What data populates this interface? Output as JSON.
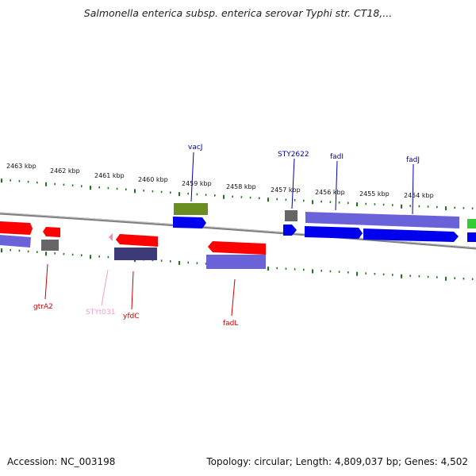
{
  "title": "Salmonella enterica subsp. enterica serovar Typhi str. CT18,...",
  "footer": {
    "accession": "Accession: NC_003198",
    "topology": "Topology: circular; Length: 4,809,037 bp; Genes: 4,502"
  },
  "colors": {
    "gene_red": "#ff0000",
    "gene_blue": "#0000ee",
    "gene_purple": "#6a62d8",
    "gene_darkpurple": "#3d3a78",
    "gene_gray": "#666666",
    "gene_olive": "#6b8e23",
    "gene_green": "#33cc33",
    "trna_pink": "#f08ac0",
    "tick_green": "#1a7a1a",
    "backbone": "#808080",
    "label_blue": "#0000aa",
    "label_red": "#cc0000",
    "label_pink": "#f0a0c8"
  },
  "scale_labels": [
    "2463 kbp",
    "2462 kbp",
    "2461 kbp",
    "2460 kbp",
    "2459 kbp",
    "2458 kbp",
    "2457 kbp",
    "2456 kbp",
    "2455 kbp",
    "2454 kbp"
  ],
  "gene_labels": {
    "vacJ": "vacJ",
    "STY2622": "STY2622",
    "fadI": "fadI",
    "fadJ": "fadJ",
    "gtrA2": "gtrA2",
    "STYt031": "STYt031",
    "yfdC": "yfdC",
    "fadL": "fadL"
  }
}
